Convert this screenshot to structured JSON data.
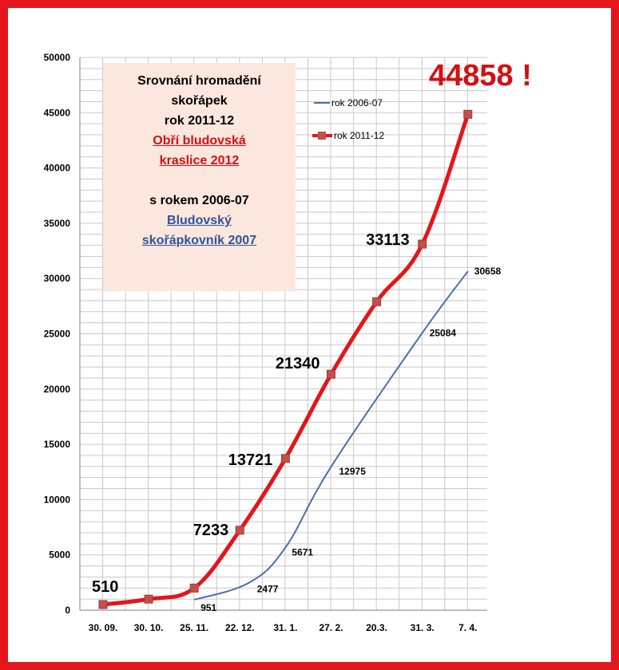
{
  "chart_data": {
    "type": "line",
    "categories": [
      "30. 09.",
      "30. 10.",
      "25. 11.",
      "22. 12.",
      "31. 1.",
      "27. 2.",
      "20.3.",
      "31. 3.",
      "7. 4."
    ],
    "ylim": [
      0,
      50000
    ],
    "yticks": [
      0,
      5000,
      10000,
      15000,
      20000,
      25000,
      30000,
      35000,
      40000,
      45000,
      50000
    ],
    "grid": true,
    "legend_position": "top-right",
    "series": [
      {
        "name": "rok 2006-07",
        "color": "#4a6fa8",
        "marker": "none",
        "points": [
          {
            "x": 2.0,
            "y": 951
          },
          {
            "x": 3.2,
            "y": 2477
          },
          {
            "x": 4.0,
            "y": 5671
          },
          {
            "x": 5.0,
            "y": 12975
          },
          {
            "x": 7.0,
            "y": 25084
          },
          {
            "x": 8.0,
            "y": 30658
          }
        ],
        "labels": [
          {
            "index": 0,
            "text": "951"
          },
          {
            "index": 1,
            "text": "2477"
          },
          {
            "index": 2,
            "text": "5671"
          },
          {
            "index": 3,
            "text": "12975"
          },
          {
            "index": 4,
            "text": "25084"
          },
          {
            "index": 5,
            "text": "30658"
          }
        ]
      },
      {
        "name": "rok 2011-12",
        "color": "#e3161b",
        "marker": "square",
        "points": [
          {
            "x": 0,
            "y": 510
          },
          {
            "x": 1,
            "y": 1000
          },
          {
            "x": 2,
            "y": 2000
          },
          {
            "x": 3,
            "y": 7233
          },
          {
            "x": 4,
            "y": 13721
          },
          {
            "x": 5,
            "y": 21340
          },
          {
            "x": 6,
            "y": 27900
          },
          {
            "x": 7,
            "y": 33113
          },
          {
            "x": 8,
            "y": 44858
          }
        ],
        "labels": [
          {
            "index": 0,
            "text": "510"
          },
          {
            "index": 3,
            "text": "7233"
          },
          {
            "index": 4,
            "text": "13721"
          },
          {
            "index": 5,
            "text": "21340"
          },
          {
            "index": 7,
            "text": "33113"
          }
        ]
      }
    ],
    "annotation": "44858 !"
  },
  "note": {
    "line1": "Srovnání hromadění",
    "line2": "skořápek",
    "line3": "rok 2011-12",
    "line4": "Obří bludovská",
    "line5": "kraslice 2012",
    "line6": "s rokem 2006-07",
    "line7": "Bludovský",
    "line8": "skořápkovník 2007"
  }
}
